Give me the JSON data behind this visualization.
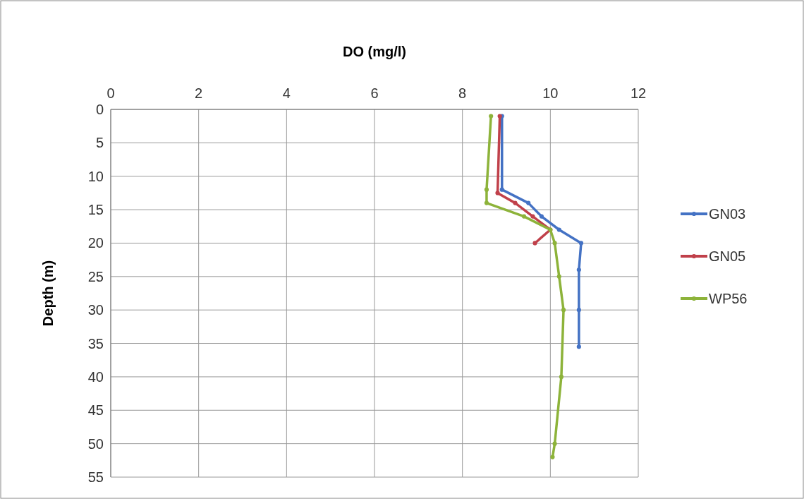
{
  "chart_data": {
    "type": "line",
    "xlabel": "DO (mg/l)",
    "ylabel": "Depth (m)",
    "xlim": [
      0,
      12
    ],
    "xticks": [
      0,
      2,
      4,
      6,
      8,
      10,
      12
    ],
    "ylim": [
      55,
      0
    ],
    "yticks": [
      0,
      5,
      10,
      15,
      20,
      25,
      30,
      35,
      40,
      45,
      50,
      55
    ],
    "grid": true,
    "legend": "right",
    "marker": "circle",
    "series": [
      {
        "name": "GN03",
        "color": "#4472c4",
        "x": [
          8.9,
          8.9,
          9.5,
          9.8,
          10.2,
          10.7,
          10.65,
          10.65,
          10.65
        ],
        "values": [
          1,
          12,
          14,
          16,
          18,
          20,
          24,
          30,
          35.5
        ]
      },
      {
        "name": "GN05",
        "color": "#c0404a",
        "x": [
          8.85,
          8.8,
          9.2,
          9.6,
          10.0,
          9.65
        ],
        "values": [
          1,
          12.5,
          14,
          16,
          18,
          20
        ]
      },
      {
        "name": "WP56",
        "color": "#8db33a",
        "x": [
          8.65,
          8.55,
          8.55,
          9.4,
          10.0,
          10.1,
          10.2,
          10.3,
          10.25,
          10.1,
          10.05
        ],
        "values": [
          1,
          12,
          14,
          16,
          18,
          20,
          25,
          30,
          40,
          50,
          52
        ]
      }
    ]
  }
}
